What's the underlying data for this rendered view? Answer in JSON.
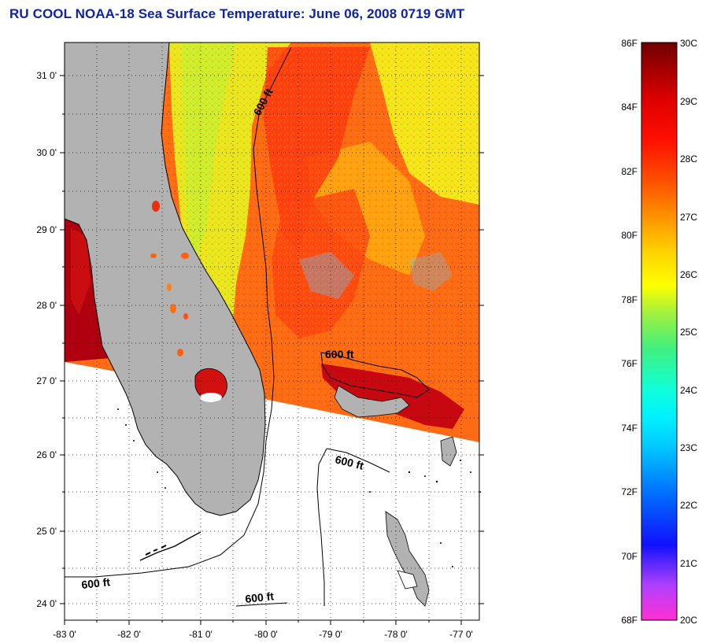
{
  "title": "RU COOL  NOAA-18  Sea Surface Temperature:  June 06, 2008 0719 GMT",
  "map": {
    "x_ticks": [
      "-83 0'",
      "-82 0'",
      "-81 0'",
      "-80 0'",
      "-79 0'",
      "-78 0'",
      "-77 0'"
    ],
    "y_ticks": [
      "31 0'",
      "30 0'",
      "29 0'",
      "28 0'",
      "27 0'",
      "26 0'",
      "25 0'",
      "24 0'"
    ],
    "contour_labels": [
      "600 ft",
      "600 ft",
      "600 ft",
      "600 ft",
      "600 ft"
    ],
    "colors": {
      "land": "#b2b2b2",
      "no_data": "#ffffff",
      "coast": "#000000"
    }
  },
  "colorbar": {
    "fahrenheit": [
      "86F",
      "84F",
      "82F",
      "80F",
      "78F",
      "76F",
      "74F",
      "72F",
      "70F",
      "68F"
    ],
    "celsius": [
      "30C",
      "29C",
      "28C",
      "27C",
      "26C",
      "25C",
      "24C",
      "23C",
      "22C",
      "21C",
      "20C"
    ],
    "gradient": [
      "#ff30d0",
      "#b040ff",
      "#2020ff",
      "#0040ff",
      "#0090ff",
      "#00d8ff",
      "#10ffd8",
      "#40f080",
      "#a0f040",
      "#ffff00",
      "#ffd000",
      "#ff9000",
      "#ff5000",
      "#ff1000",
      "#e00000",
      "#a00000",
      "#700000"
    ]
  }
}
